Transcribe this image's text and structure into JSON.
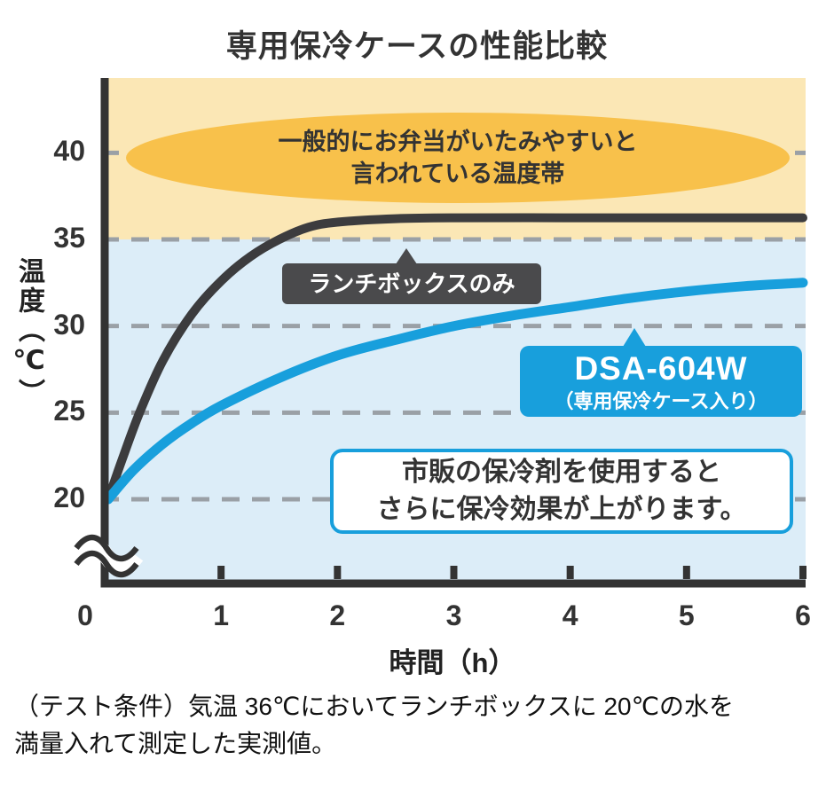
{
  "title": "専用保冷ケースの性能比較",
  "axes": {
    "y_label": "温度（℃）",
    "x_label": "時間（h）"
  },
  "annotations": {
    "danger_zone_line1": "一般的にお弁当がいたみやすいと",
    "danger_zone_line2": "言われている温度帯",
    "lunchbox_label": "ランチボックスのみ",
    "product_name": "DSA-604W",
    "product_sub": "（専用保冷ケース入り）",
    "note_line1": "市販の保冷剤を使用すると",
    "note_line2": "さらに保冷効果が上がります。"
  },
  "footer": {
    "line1": "（テスト条件）気温 36℃においてランチボックスに 20℃の水を",
    "line2": "満量入れて測定した実測値。"
  },
  "colors": {
    "accent_blue": "#189fdc",
    "dark_gray": "#3c3c3e",
    "band_yellow": "#fbe7b5",
    "band_blue": "#dcedf8",
    "ellipse_orange": "#f8c14b",
    "grid_gray": "#9aa0a6",
    "axis_black": "#333333"
  },
  "chart_data": {
    "type": "line",
    "title": "専用保冷ケースの性能比較",
    "xlabel": "時間（h）",
    "ylabel": "温度（℃）",
    "x_ticks": [
      0,
      1,
      2,
      3,
      4,
      5,
      6
    ],
    "y_ticks": [
      20,
      25,
      30,
      35,
      40
    ],
    "xlim": [
      0,
      6
    ],
    "ylim_display": [
      20,
      44
    ],
    "axis_break_below": 20,
    "danger_zone_min": 35,
    "grid": "dashed-horizontal",
    "series": [
      {
        "name": "ランチボックスのみ",
        "color": "#3c3c3e",
        "x": [
          0.03,
          0.15,
          0.3,
          0.5,
          0.75,
          1,
          1.25,
          1.5,
          1.75,
          2,
          2.5,
          3,
          4,
          5,
          6
        ],
        "values": [
          20,
          22.3,
          25,
          28,
          30.7,
          32.6,
          34,
          35,
          35.7,
          36,
          36.2,
          36.25,
          36.25,
          36.25,
          36.25
        ]
      },
      {
        "name": "DSA-604W（専用保冷ケース入り）",
        "color": "#189fdc",
        "x": [
          0.03,
          0.25,
          0.5,
          0.75,
          1,
          1.5,
          2,
          2.5,
          3,
          3.5,
          4,
          4.5,
          5,
          5.5,
          6
        ],
        "values": [
          20,
          21.7,
          23.2,
          24.4,
          25.4,
          27,
          28.3,
          29.2,
          30,
          30.6,
          31.1,
          31.6,
          32,
          32.3,
          32.5
        ]
      }
    ]
  }
}
